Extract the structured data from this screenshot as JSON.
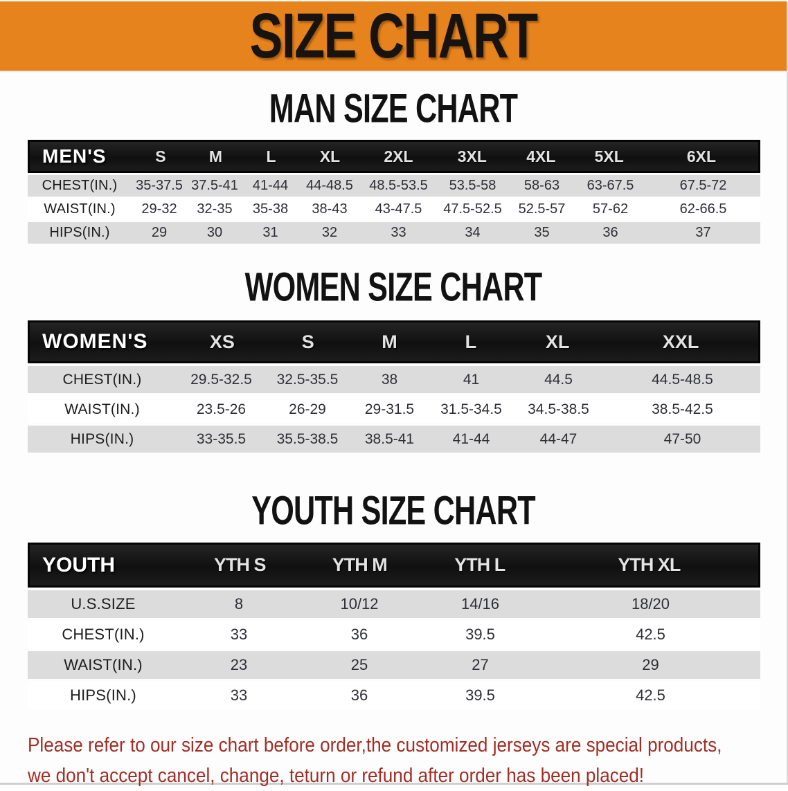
{
  "banner": {
    "title": "SIZE CHART"
  },
  "colors": {
    "banner_orange": "#e6831d",
    "header_black": "#161616",
    "row_gray": "#dcdcdc",
    "disclaimer_red": "#a12e24"
  },
  "tables": [
    {
      "heading": "MAN SIZE CHART",
      "name": "MEN'S",
      "sizes": [
        "S",
        "M",
        "L",
        "XL",
        "2XL",
        "3XL",
        "4XL",
        "5XL",
        "6XL"
      ],
      "rows": [
        {
          "label": "CHEST(IN.)",
          "values": [
            "35-37.5",
            "37.5-41",
            "41-44",
            "44-48.5",
            "48.5-53.5",
            "53.5-58",
            "58-63",
            "63-67.5",
            "67.5-72"
          ]
        },
        {
          "label": "WAIST(IN.)",
          "values": [
            "29-32",
            "32-35",
            "35-38",
            "38-43",
            "43-47.5",
            "47.5-52.5",
            "52.5-57",
            "57-62",
            "62-66.5"
          ]
        },
        {
          "label": "HIPS(IN.)",
          "values": [
            "29",
            "30",
            "31",
            "32",
            "33",
            "34",
            "35",
            "36",
            "37"
          ]
        }
      ]
    },
    {
      "heading": "WOMEN SIZE CHART",
      "name": "WOMEN'S",
      "sizes": [
        "XS",
        "S",
        "M",
        "L",
        "XL",
        "XXL"
      ],
      "rows": [
        {
          "label": "CHEST(IN.)",
          "values": [
            "29.5-32.5",
            "32.5-35.5",
            "38",
            "41",
            "44.5",
            "44.5-48.5"
          ]
        },
        {
          "label": "WAIST(IN.)",
          "values": [
            "23.5-26",
            "26-29",
            "29-31.5",
            "31.5-34.5",
            "34.5-38.5",
            "38.5-42.5"
          ]
        },
        {
          "label": "HIPS(IN.)",
          "values": [
            "33-35.5",
            "35.5-38.5",
            "38.5-41",
            "41-44",
            "44-47",
            "47-50"
          ]
        }
      ]
    },
    {
      "heading": "YOUTH SIZE CHART",
      "name": "YOUTH",
      "sizes": [
        "YTH S",
        "YTH M",
        "YTH L",
        "YTH XL"
      ],
      "rows": [
        {
          "label": "U.S.SIZE",
          "values": [
            "8",
            "10/12",
            "14/16",
            "18/20"
          ]
        },
        {
          "label": "CHEST(IN.)",
          "values": [
            "33",
            "36",
            "39.5",
            "42.5"
          ]
        },
        {
          "label": "WAIST(IN.)",
          "values": [
            "23",
            "25",
            "27",
            "29"
          ]
        },
        {
          "label": "HIPS(IN.)",
          "values": [
            "33",
            "36",
            "39.5",
            "42.5"
          ]
        }
      ]
    }
  ],
  "disclaimer": {
    "line1": "Please refer to our size chart before order,the customized jerseys are special products,",
    "line2": "we don't accept cancel, change, teturn or refund after order has been placed!"
  }
}
